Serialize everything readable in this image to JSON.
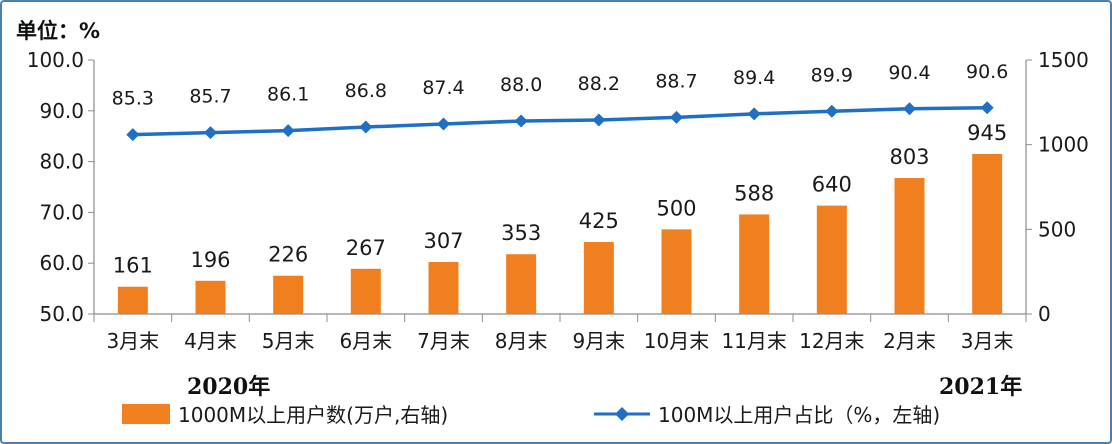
{
  "chart_data": {
    "type": "bar",
    "unit_label": "单位：%",
    "categories": [
      "3月末",
      "4月末",
      "5月末",
      "6月末",
      "7月末",
      "8月末",
      "9月末",
      "10月末",
      "11月末",
      "12月末",
      "2月末",
      "3月末"
    ],
    "year_labels": [
      "2020年",
      "2021年"
    ],
    "left_axis": {
      "ylim": [
        50,
        100
      ],
      "ticks": [
        "50.0",
        "60.0",
        "70.0",
        "80.0",
        "90.0",
        "100.0"
      ]
    },
    "right_axis": {
      "ylim": [
        0,
        1500
      ],
      "ticks": [
        "0",
        "500",
        "1000",
        "1500"
      ]
    },
    "series": [
      {
        "name": "1000M以上用户数(万户,右轴)",
        "type": "bar",
        "axis": "right",
        "color": "#f07f1f",
        "values": [
          161,
          196,
          226,
          267,
          307,
          353,
          425,
          500,
          588,
          640,
          803,
          945
        ]
      },
      {
        "name": "100M以上用户占比（%，左轴)",
        "type": "line",
        "axis": "left",
        "color": "#1f6fc5",
        "values": [
          85.3,
          85.7,
          86.1,
          86.8,
          87.4,
          88.0,
          88.2,
          88.7,
          89.4,
          89.9,
          90.4,
          90.6
        ]
      }
    ],
    "grid": false,
    "legend": "bottom"
  }
}
